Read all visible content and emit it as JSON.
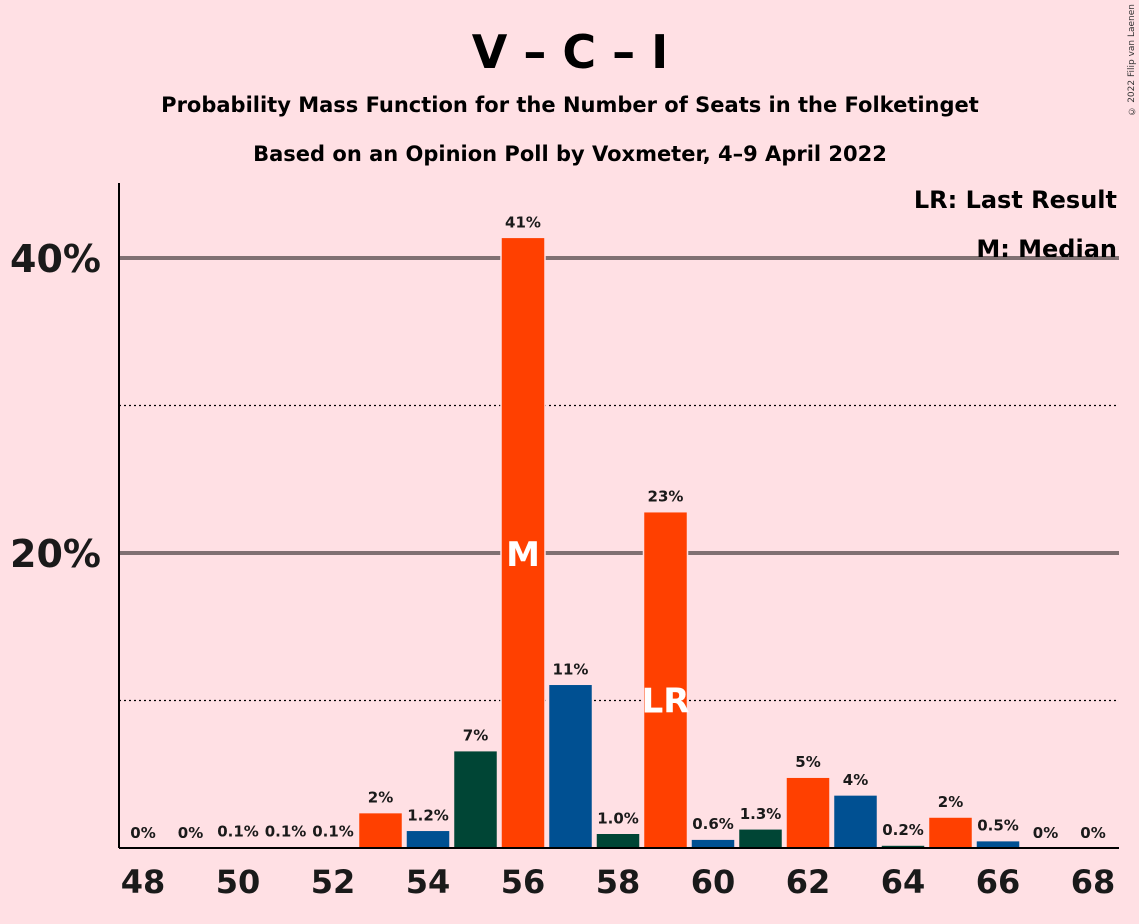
{
  "copyright": "© 2022 Filip van Laenen",
  "chart_data": {
    "type": "bar",
    "title": "V – C – I",
    "subtitle": "Probability Mass Function for the Number of Seats in the Folketinget",
    "subtitle2": "Based on an Opinion Poll by Voxmeter, 4–9 April 2022",
    "legend": {
      "lr": "LR: Last Result",
      "m": "M: Median",
      "placement": "top-right"
    },
    "categories": [
      48,
      49,
      50,
      51,
      52,
      53,
      54,
      55,
      56,
      57,
      58,
      59,
      60,
      61,
      62,
      63,
      64,
      65,
      66,
      67,
      68
    ],
    "values": [
      0,
      0,
      0.1,
      0.1,
      0.1,
      2.4,
      1.2,
      6.6,
      41.4,
      11.1,
      1.0,
      22.8,
      0.6,
      1.3,
      4.8,
      3.6,
      0.2,
      2.1,
      0.5,
      0,
      0
    ],
    "labels": [
      "0%",
      "0%",
      "0.1%",
      "0.1%",
      "0.1%",
      "2%",
      "1.2%",
      "7%",
      "41%",
      "11%",
      "1.0%",
      "23%",
      "0.6%",
      "1.3%",
      "5%",
      "4%",
      "0.2%",
      "2%",
      "0.5%",
      "0%",
      "0%"
    ],
    "colors": [
      "#FF4000",
      "#005092",
      "#004535",
      "#FF4000",
      "#005092",
      "#FF4000",
      "#005092",
      "#004535",
      "#FF4000",
      "#005092",
      "#004535",
      "#FF4000",
      "#005092",
      "#004535",
      "#FF4000",
      "#005092",
      "#004535",
      "#FF4000",
      "#005092",
      "#004535",
      "#FF4000"
    ],
    "x_tick_labels": [
      "48",
      "50",
      "52",
      "54",
      "56",
      "58",
      "60",
      "62",
      "64",
      "66",
      "68"
    ],
    "y_tick_labels": [
      "20%",
      "40%"
    ],
    "ylim": [
      0,
      45
    ],
    "major_gridlines": [
      20,
      40
    ],
    "minor_gridlines": [
      10,
      30
    ],
    "median": 56,
    "median_marker": "M",
    "last_result": 59,
    "last_result_marker": "LR"
  }
}
